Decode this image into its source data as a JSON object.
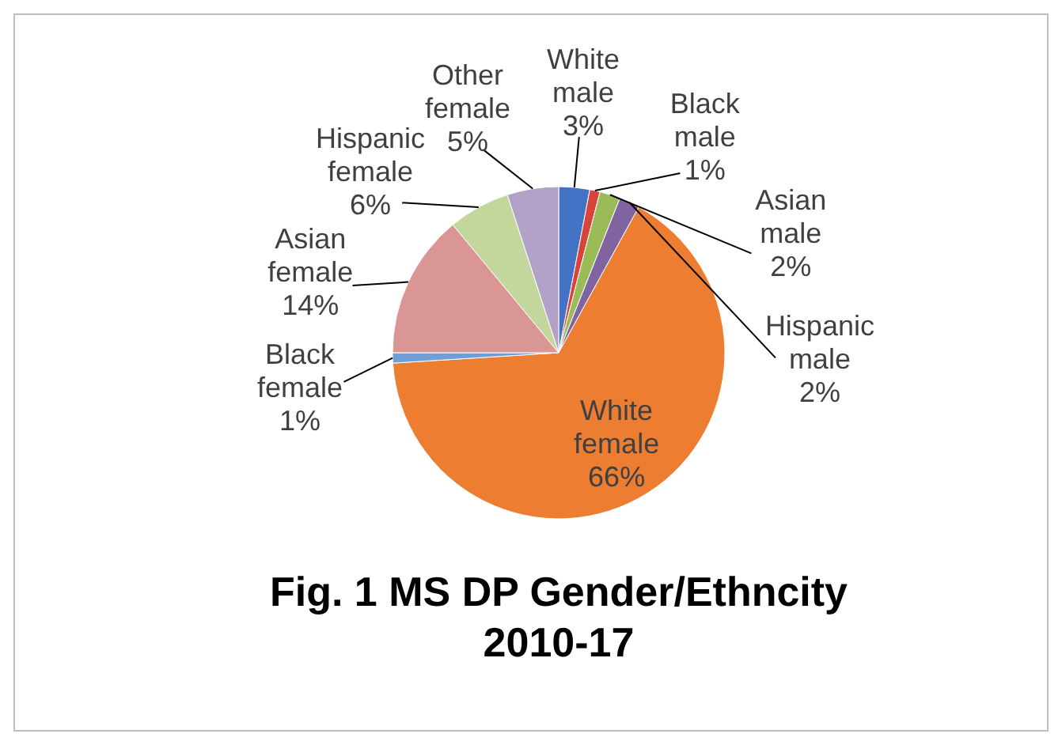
{
  "chart_data": {
    "type": "pie",
    "title": "Fig. 1 MS DP Gender/Ethncity 2010-17",
    "categories": [
      "White male",
      "Black male",
      "Asian male",
      "Hispanic male",
      "White female",
      "Black female",
      "Asian female",
      "Hispanic female",
      "Other female"
    ],
    "values": [
      3,
      1,
      2,
      2,
      66,
      1,
      14,
      6,
      5
    ],
    "value_labels": [
      "3%",
      "1%",
      "2%",
      "2%",
      "66%",
      "1%",
      "14%",
      "6%",
      "5%"
    ],
    "colors": [
      "#4472c4",
      "#d9443a",
      "#9bbb59",
      "#8064a2",
      "#ed7d31",
      "#6f9fd8",
      "#d99694",
      "#c3d69b",
      "#b3a2c7"
    ]
  }
}
